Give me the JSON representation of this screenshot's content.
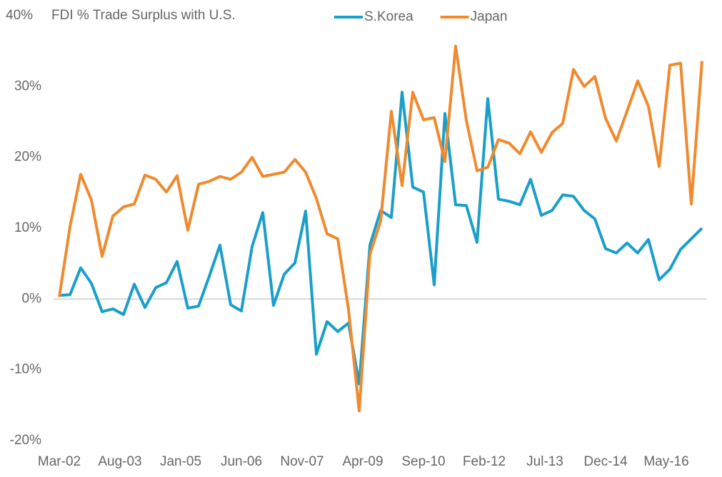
{
  "chart_data": {
    "type": "line",
    "title": "FDI % Trade Surplus with U.S.",
    "x": [
      "2002-03",
      "2002-06",
      "2002-09",
      "2002-12",
      "2003-03",
      "2003-06",
      "2003-09",
      "2003-12",
      "2004-03",
      "2004-06",
      "2004-09",
      "2004-12",
      "2005-03",
      "2005-06",
      "2005-09",
      "2005-12",
      "2006-03",
      "2006-06",
      "2006-09",
      "2006-12",
      "2007-03",
      "2007-06",
      "2007-09",
      "2007-12",
      "2008-03",
      "2008-06",
      "2008-09",
      "2008-12",
      "2009-03",
      "2009-06",
      "2009-09",
      "2009-12",
      "2010-03",
      "2010-06",
      "2010-09",
      "2010-12",
      "2011-03",
      "2011-06",
      "2011-09",
      "2011-12",
      "2012-03",
      "2012-06",
      "2012-09",
      "2012-12",
      "2013-03",
      "2013-06",
      "2013-09",
      "2013-12",
      "2014-03",
      "2014-06",
      "2014-09",
      "2014-12",
      "2015-03",
      "2015-06",
      "2015-09",
      "2015-12",
      "2016-03",
      "2016-06",
      "2016-09",
      "2016-12",
      "2017-03"
    ],
    "series": [
      {
        "name": "S.Korea",
        "color": "#1a9fc9",
        "values": [
          0.5,
          0.6,
          4.4,
          2.2,
          -1.8,
          -1.4,
          -2.2,
          2.1,
          -1.2,
          1.6,
          2.3,
          5.3,
          -1.3,
          -1.0,
          3.2,
          7.6,
          -0.8,
          -1.7,
          7.4,
          12.2,
          -0.9,
          3.5,
          5.1,
          12.4,
          -7.8,
          -3.2,
          -4.6,
          -3.4,
          -12.0,
          7.6,
          12.5,
          11.5,
          29.2,
          15.8,
          15.1,
          2.0,
          26.2,
          13.3,
          13.2,
          8.0,
          28.3,
          14.1,
          13.8,
          13.3,
          16.9,
          11.8,
          12.5,
          14.7,
          14.5,
          12.5,
          11.3,
          7.1,
          6.5,
          7.9,
          6.5,
          8.4,
          2.7,
          4.2,
          7.0,
          8.5,
          10.0
        ]
      },
      {
        "name": "Japan",
        "color": "#ef8a2e",
        "values": [
          0.3,
          10.2,
          17.6,
          14.0,
          6.0,
          11.7,
          13.0,
          13.4,
          17.5,
          16.9,
          15.1,
          17.4,
          9.7,
          16.2,
          16.6,
          17.3,
          16.9,
          17.9,
          20.0,
          17.3,
          17.6,
          17.9,
          19.7,
          17.9,
          14.2,
          9.2,
          8.5,
          -1.5,
          -15.8,
          6.3,
          11.0,
          26.5,
          16.0,
          29.2,
          25.3,
          25.6,
          19.4,
          35.7,
          25.2,
          18.1,
          18.6,
          22.5,
          22.0,
          20.5,
          23.6,
          20.7,
          23.5,
          24.8,
          32.4,
          30.0,
          31.4,
          25.5,
          22.3,
          26.5,
          30.8,
          27.2,
          18.7,
          33.0,
          33.3,
          13.4,
          33.6
        ]
      }
    ],
    "xticks": [
      {
        "value": "2002-03",
        "label": "Mar-02"
      },
      {
        "value": "2003-08",
        "label": "Aug-03"
      },
      {
        "value": "2005-01",
        "label": "Jan-05"
      },
      {
        "value": "2006-06",
        "label": "Jun-06"
      },
      {
        "value": "2007-11",
        "label": "Nov-07"
      },
      {
        "value": "2009-04",
        "label": "Apr-09"
      },
      {
        "value": "2010-09",
        "label": "Sep-10"
      },
      {
        "value": "2012-02",
        "label": "Feb-12"
      },
      {
        "value": "2013-07",
        "label": "Jul-13"
      },
      {
        "value": "2014-12",
        "label": "Dec-14"
      },
      {
        "value": "2016-05",
        "label": "May-16"
      }
    ],
    "ylim": [
      -20,
      40
    ],
    "yticks": [
      {
        "value": -20,
        "label": "-20%"
      },
      {
        "value": -10,
        "label": "-10%"
      },
      {
        "value": 0,
        "label": "0%"
      },
      {
        "value": 10,
        "label": "10%"
      },
      {
        "value": 20,
        "label": "20%"
      },
      {
        "value": 30,
        "label": "30%"
      },
      {
        "value": 40,
        "label": "40%"
      }
    ],
    "legend": "top"
  }
}
